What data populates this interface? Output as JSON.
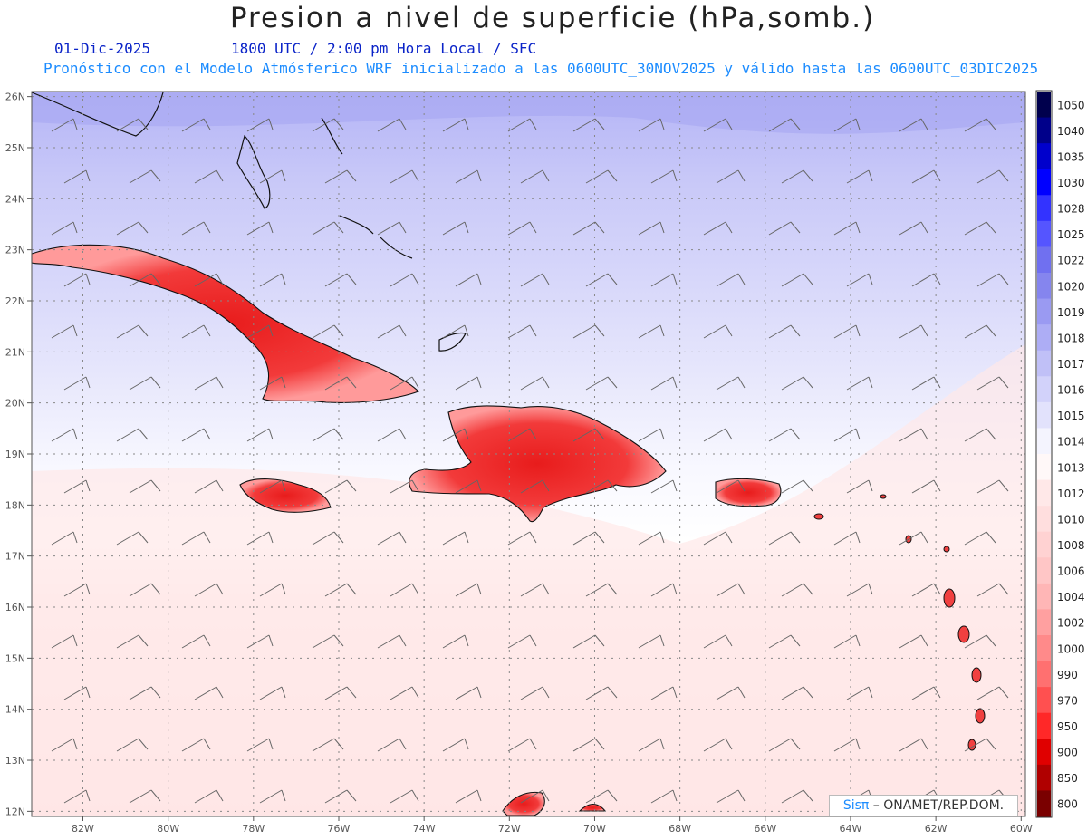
{
  "header": {
    "title": "Presion a nivel de superficie (hPa,somb.)",
    "date": "01-Dic-2025",
    "time": "1800 UTC / 2:00 pm Hora Local / SFC",
    "model": "Pronóstico con el Modelo Atmósferico WRF inicializado a las 0600UTC_30NOV2025 y válido hasta las  0600UTC_03DIC2025"
  },
  "axes": {
    "lat_labels": [
      "26N",
      "25N",
      "24N",
      "23N",
      "22N",
      "21N",
      "20N",
      "19N",
      "18N",
      "17N",
      "16N",
      "15N",
      "14N",
      "13N",
      "12N"
    ],
    "lon_labels": [
      "82W",
      "80W",
      "78W",
      "76W",
      "74W",
      "72W",
      "70W",
      "68W",
      "66W",
      "64W",
      "62W",
      "60W"
    ],
    "lat_range": [
      11.9,
      26.1
    ],
    "lon_range": [
      -83.2,
      -59.9
    ]
  },
  "legend": {
    "levels": [
      "1050",
      "1040",
      "1035",
      "1030",
      "1028",
      "1025",
      "1022",
      "1020",
      "1019",
      "1018",
      "1017",
      "1016",
      "1015",
      "1014",
      "1013",
      "1012",
      "1010",
      "1008",
      "1006",
      "1004",
      "1002",
      "1000",
      "990",
      "970",
      "950",
      "900",
      "850",
      "800"
    ],
    "colors": [
      "#00004d",
      "#00008a",
      "#0000cc",
      "#0000ff",
      "#3333ff",
      "#5555ff",
      "#7070f0",
      "#8585ee",
      "#9a9af2",
      "#adadf5",
      "#c0c0f7",
      "#d2d2fa",
      "#e2e2fc",
      "#f4f4fe",
      "#fff8f8",
      "#ffe8e8",
      "#ffdede",
      "#ffd2d2",
      "#ffc6c6",
      "#ffb6b6",
      "#ffa0a0",
      "#ff8a8a",
      "#ff7070",
      "#ff5050",
      "#ff2828",
      "#e00000",
      "#b00000",
      "#7a0000"
    ]
  },
  "credit": {
    "sis": "Sis",
    "pi": "π",
    "rest": " – ONAMET/REP.DOM."
  }
}
